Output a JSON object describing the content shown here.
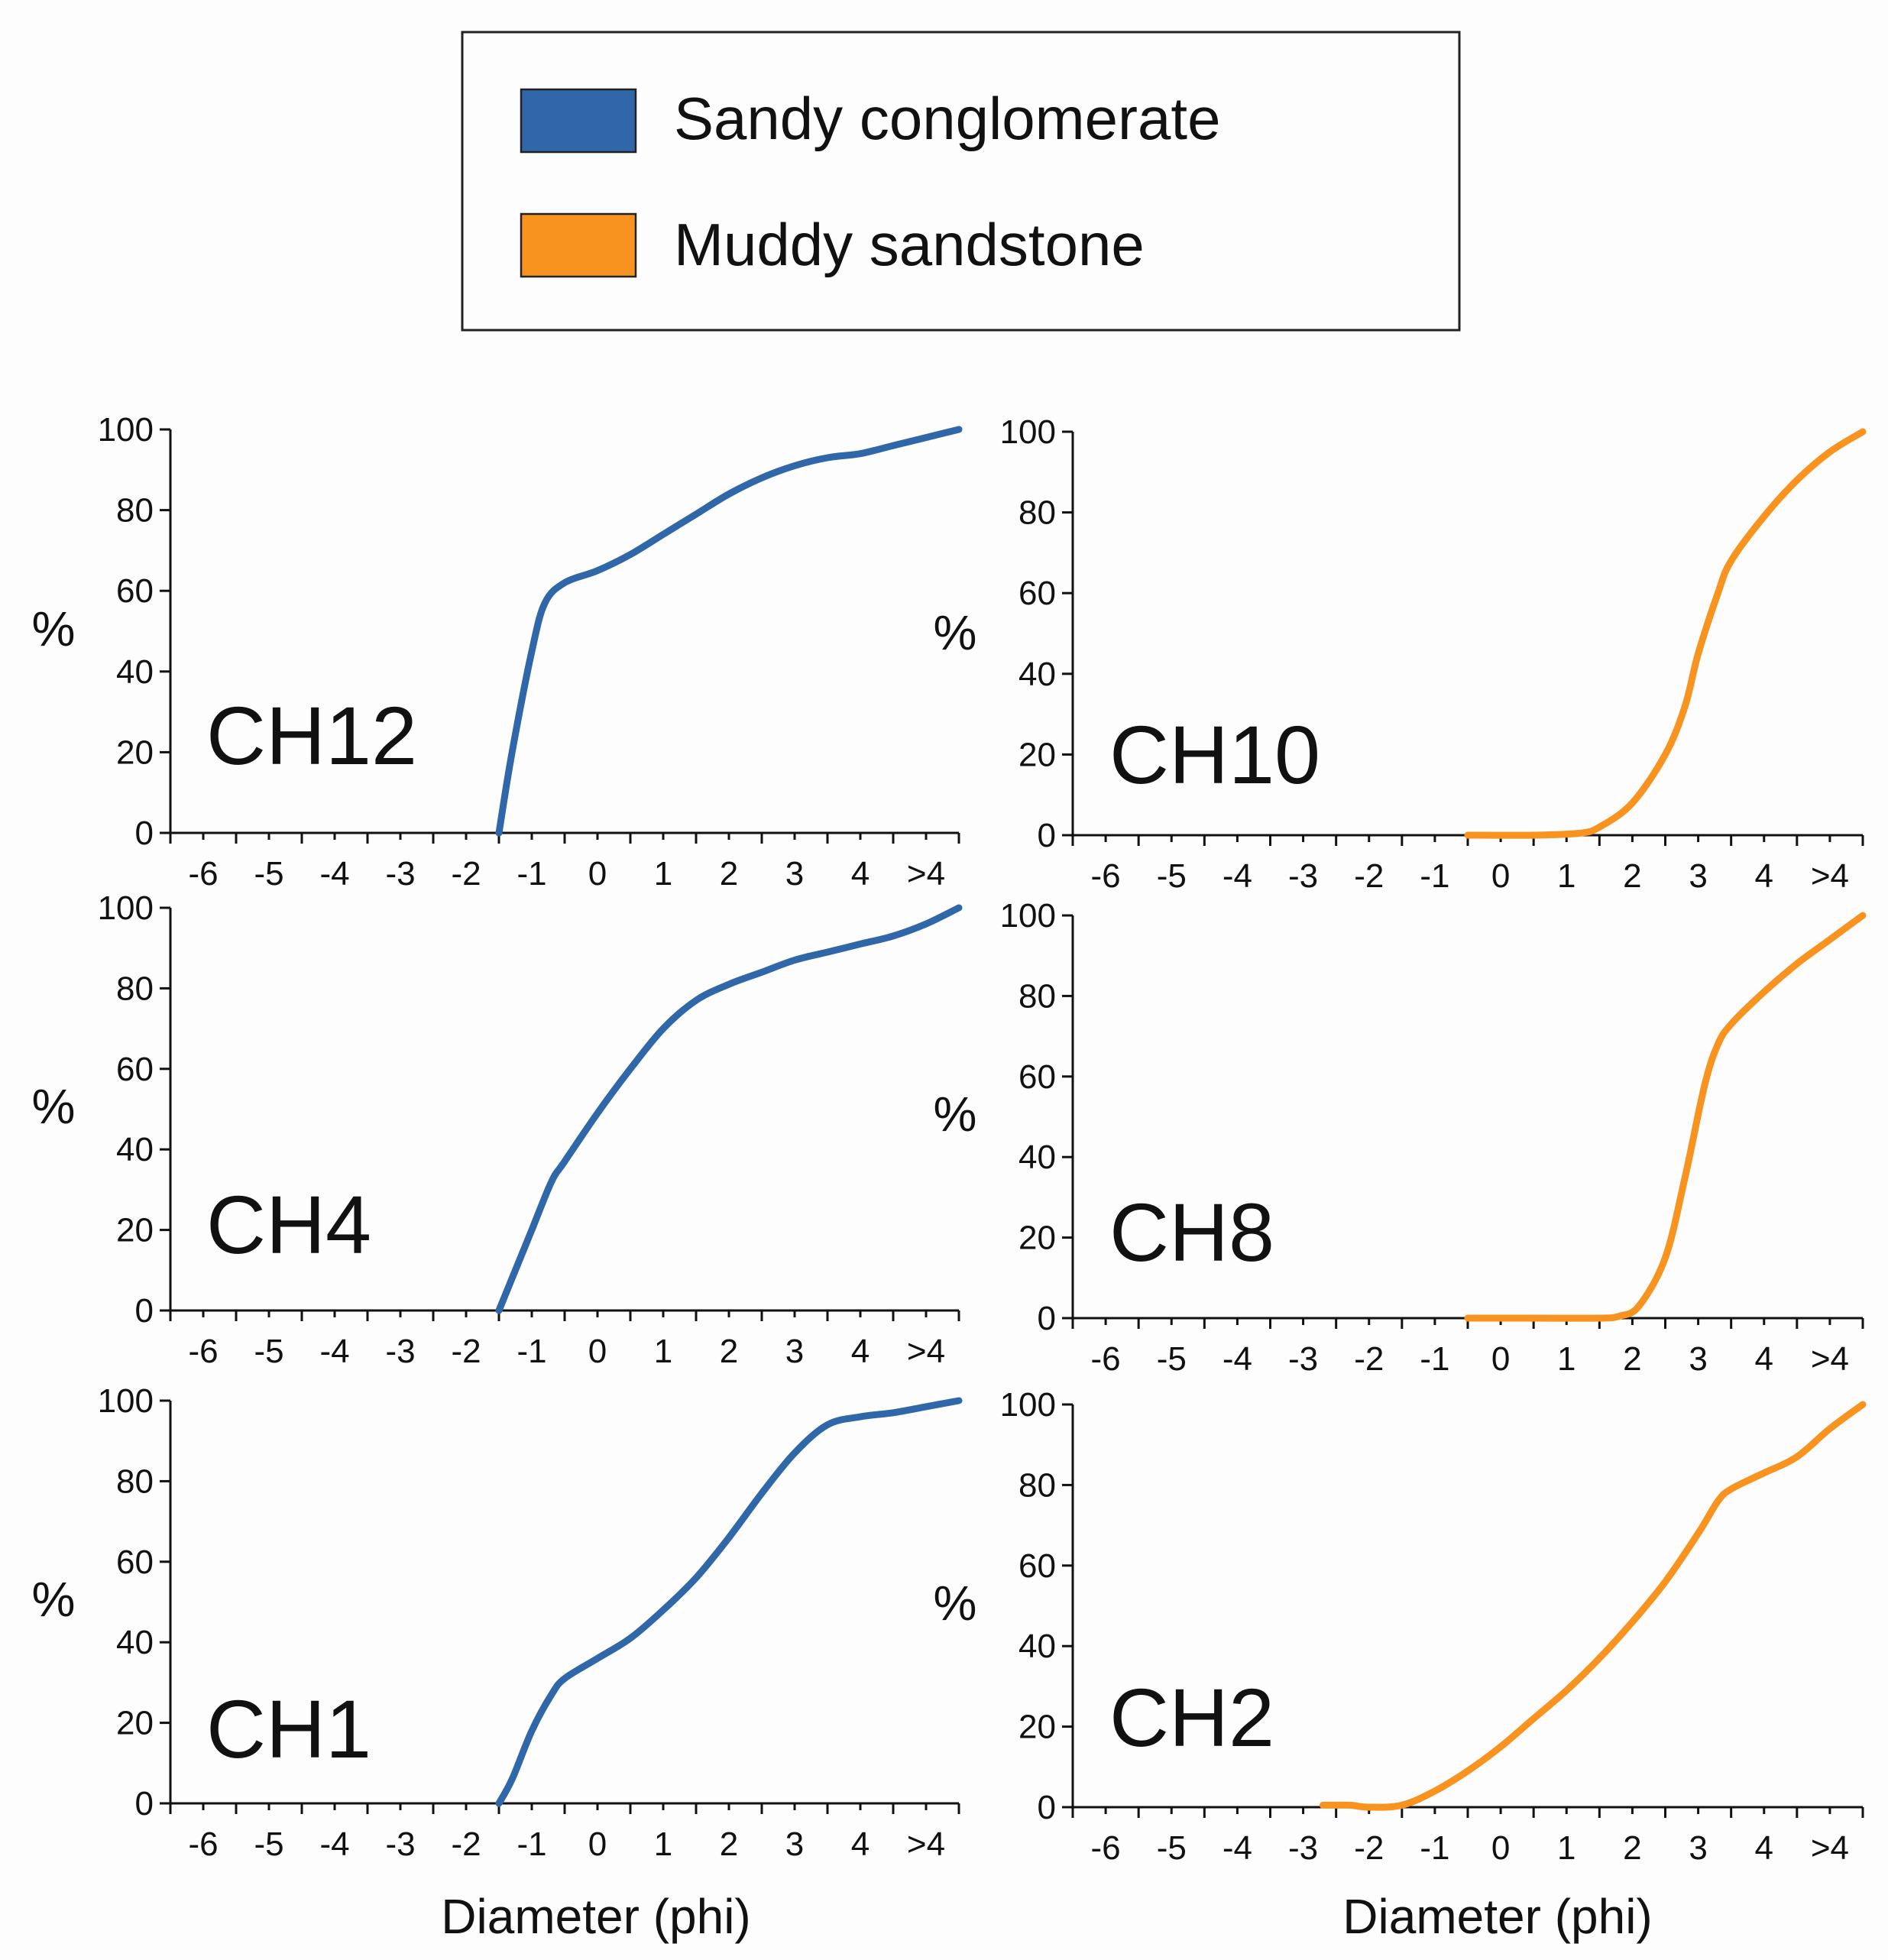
{
  "legend": {
    "items": [
      {
        "label": "Sandy conglomerate",
        "color": "#2f67a8"
      },
      {
        "label": "Muddy sandstone",
        "color": "#f7931e"
      }
    ]
  },
  "chart_data": [
    {
      "type": "line",
      "panel": "left-top",
      "name": "CH12",
      "series_color": "#2f67a8",
      "ylabel": "%",
      "xlabel": "",
      "ticks": [
        "-6",
        "-5",
        "-4",
        "-3",
        "-2",
        "-1",
        "0",
        "1",
        "2",
        "3",
        "4",
        ">4"
      ],
      "yticks": [
        "0",
        "20",
        "40",
        "60",
        "80",
        "100"
      ],
      "ylim": [
        0,
        100
      ],
      "points": [
        [
          -2,
          0
        ],
        [
          -1.8,
          20
        ],
        [
          -1.5,
          45
        ],
        [
          -1.3,
          57
        ],
        [
          -1,
          62
        ],
        [
          -0.5,
          65
        ],
        [
          0,
          69
        ],
        [
          0.5,
          74
        ],
        [
          1,
          79
        ],
        [
          1.5,
          84
        ],
        [
          2,
          88
        ],
        [
          2.5,
          91
        ],
        [
          3,
          93
        ],
        [
          3.5,
          94
        ],
        [
          4,
          96
        ],
        [
          4.5,
          98
        ],
        [
          5,
          100
        ]
      ]
    },
    {
      "type": "line",
      "panel": "left-middle",
      "name": "CH4",
      "series_color": "#2f67a8",
      "ylabel": "%",
      "xlabel": "",
      "ticks": [
        "-6",
        "-5",
        "-4",
        "-3",
        "-2",
        "-1",
        "0",
        "1",
        "2",
        "3",
        "4",
        ">4"
      ],
      "yticks": [
        "0",
        "20",
        "40",
        "60",
        "80",
        "100"
      ],
      "ylim": [
        0,
        100
      ],
      "points": [
        [
          -2,
          0
        ],
        [
          -1.8,
          8
        ],
        [
          -1.5,
          20
        ],
        [
          -1.2,
          32
        ],
        [
          -1,
          37
        ],
        [
          -0.5,
          49
        ],
        [
          0,
          60
        ],
        [
          0.5,
          70
        ],
        [
          1,
          77
        ],
        [
          1.5,
          81
        ],
        [
          2,
          84
        ],
        [
          2.5,
          87
        ],
        [
          3,
          89
        ],
        [
          3.5,
          91
        ],
        [
          4,
          93
        ],
        [
          4.5,
          96
        ],
        [
          5,
          100
        ]
      ]
    },
    {
      "type": "line",
      "panel": "left-bottom",
      "name": "CH1",
      "series_color": "#2f67a8",
      "ylabel": "%",
      "xlabel": "Diameter (phi)",
      "ticks": [
        "-6",
        "-5",
        "-4",
        "-3",
        "-2",
        "-1",
        "0",
        "1",
        "2",
        "3",
        "4",
        ">4"
      ],
      "yticks": [
        "0",
        "20",
        "40",
        "60",
        "80",
        "100"
      ],
      "ylim": [
        0,
        100
      ],
      "points": [
        [
          -2,
          0
        ],
        [
          -1.8,
          6
        ],
        [
          -1.5,
          18
        ],
        [
          -1.2,
          27
        ],
        [
          -1,
          31
        ],
        [
          -0.5,
          36
        ],
        [
          0,
          41
        ],
        [
          0.5,
          48
        ],
        [
          1,
          56
        ],
        [
          1.5,
          66
        ],
        [
          2,
          77
        ],
        [
          2.5,
          87
        ],
        [
          3,
          94
        ],
        [
          3.5,
          96
        ],
        [
          4,
          97
        ],
        [
          4.5,
          98.5
        ],
        [
          5,
          100
        ]
      ]
    },
    {
      "type": "line",
      "panel": "right-top",
      "name": "CH10",
      "series_color": "#f7931e",
      "ylabel": "%",
      "xlabel": "",
      "ticks": [
        "-6",
        "-5",
        "-4",
        "-3",
        "-2",
        "-1",
        "0",
        "1",
        "2",
        "3",
        "4",
        ">4"
      ],
      "yticks": [
        "0",
        "20",
        "40",
        "60",
        "80",
        "100"
      ],
      "ylim": [
        0,
        100
      ],
      "points": [
        [
          -1,
          0
        ],
        [
          0,
          0
        ],
        [
          0.7,
          0.5
        ],
        [
          1,
          2
        ],
        [
          1.5,
          8
        ],
        [
          2,
          20
        ],
        [
          2.3,
          32
        ],
        [
          2.5,
          45
        ],
        [
          2.8,
          60
        ],
        [
          3,
          68
        ],
        [
          3.5,
          79
        ],
        [
          4,
          88
        ],
        [
          4.5,
          95
        ],
        [
          5,
          100
        ]
      ]
    },
    {
      "type": "line",
      "panel": "right-middle",
      "name": "CH8",
      "series_color": "#f7931e",
      "ylabel": "%",
      "xlabel": "",
      "ticks": [
        "-6",
        "-5",
        "-4",
        "-3",
        "-2",
        "-1",
        "0",
        "1",
        "2",
        "3",
        "4",
        ">4"
      ],
      "yticks": [
        "0",
        "20",
        "40",
        "60",
        "80",
        "100"
      ],
      "ylim": [
        0,
        100
      ],
      "points": [
        [
          -1,
          0
        ],
        [
          0,
          0
        ],
        [
          1,
          0
        ],
        [
          1.3,
          0.5
        ],
        [
          1.6,
          3
        ],
        [
          2,
          15
        ],
        [
          2.3,
          35
        ],
        [
          2.6,
          58
        ],
        [
          2.8,
          68
        ],
        [
          3,
          73
        ],
        [
          3.5,
          81
        ],
        [
          4,
          88
        ],
        [
          4.5,
          94
        ],
        [
          5,
          100
        ]
      ]
    },
    {
      "type": "line",
      "panel": "right-bottom",
      "name": "CH2",
      "series_color": "#f7931e",
      "ylabel": "%",
      "xlabel": "Diameter (phi)",
      "ticks": [
        "-6",
        "-5",
        "-4",
        "-3",
        "-2",
        "-1",
        "0",
        "1",
        "2",
        "3",
        "4",
        ">4"
      ],
      "yticks": [
        "0",
        "20",
        "40",
        "60",
        "80",
        "100"
      ],
      "ylim": [
        0,
        100
      ],
      "points": [
        [
          -3.2,
          0.5
        ],
        [
          -2.8,
          0.5
        ],
        [
          -2.5,
          0
        ],
        [
          -2,
          0.5
        ],
        [
          -1.5,
          4
        ],
        [
          -1,
          9
        ],
        [
          -0.5,
          15
        ],
        [
          0,
          22
        ],
        [
          0.5,
          29
        ],
        [
          1,
          37
        ],
        [
          1.5,
          46
        ],
        [
          2,
          56
        ],
        [
          2.5,
          68
        ],
        [
          2.8,
          76
        ],
        [
          3,
          79
        ],
        [
          3.5,
          83
        ],
        [
          4,
          87
        ],
        [
          4.5,
          94
        ],
        [
          5,
          100
        ]
      ]
    }
  ]
}
